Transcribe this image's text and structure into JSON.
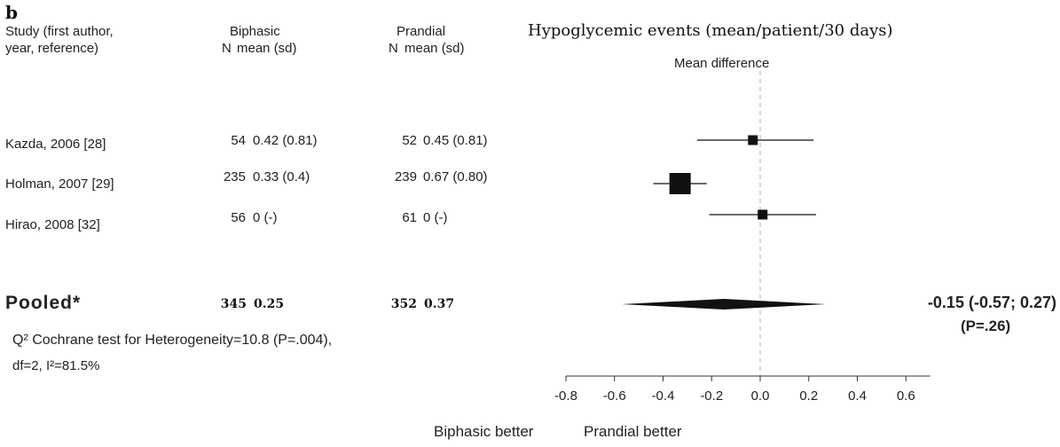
{
  "panel_label": "b",
  "title": "Hypoglycemic events (mean/patient/30 days)",
  "headers": {
    "study": [
      "Study (first author,",
      "year, reference)"
    ],
    "biphasic": "Biphasic",
    "prandial": "Prandial",
    "n": "N",
    "mean_sd": "mean (sd)",
    "mean_difference": "Mean difference"
  },
  "studies": [
    {
      "label": "Kazda, 2006 [28]",
      "bi_n": "54",
      "bi_mean": "0.42 (0.81)",
      "pr_n": "52",
      "pr_mean": "0.45 (0.81)"
    },
    {
      "label": "Holman, 2007 [29]",
      "bi_n": "235",
      "bi_mean": "0.33 (0.4)",
      "pr_n": "239",
      "pr_mean": "0.67 (0.80)"
    },
    {
      "label": "Hirao, 2008 [32]",
      "bi_n": "56",
      "bi_mean": "0 (-)",
      "pr_n": "61",
      "pr_mean": "0 (-)"
    }
  ],
  "pooled": {
    "label": "Pooled*",
    "bi_n": "345",
    "bi_mean": "0.25",
    "pr_n": "352",
    "pr_mean": "0.37",
    "estimate_text": "-0.15 (-0.57; 0.27)",
    "p_text": "(P=.26)"
  },
  "heterogeneity": [
    "Q² Cochrane test for Heterogeneity=10.8 (P=.004),",
    "df=2, I²=81.5%"
  ],
  "axis_labels": {
    "left": "Biphasic better",
    "right": "Prandial better"
  },
  "chart_data": {
    "type": "scatter",
    "subtype": "forest",
    "title": "Hypoglycemic events (mean/patient/30 days)",
    "xlabel": "",
    "ylabel": "",
    "xlim": [
      -0.8,
      0.7
    ],
    "xticks": [
      -0.8,
      -0.6,
      -0.4,
      -0.2,
      0.0,
      0.2,
      0.4,
      0.6
    ],
    "xtick_labels": [
      "-0.8",
      "-0.6",
      "-0.4",
      "-0.2",
      "0.0",
      "0.2",
      "0.4",
      "0.6"
    ],
    "reference_line": 0,
    "studies": [
      {
        "label": "Kazda, 2006 [28]",
        "estimate": -0.03,
        "lower": -0.26,
        "upper": 0.22,
        "weight": 1
      },
      {
        "label": "Holman, 2007 [29]",
        "estimate": -0.33,
        "lower": -0.44,
        "upper": -0.22,
        "weight": 2
      },
      {
        "label": "Hirao, 2008 [32]",
        "estimate": 0.01,
        "lower": -0.21,
        "upper": 0.23,
        "weight": 1
      }
    ],
    "pooled": {
      "label": "Pooled*",
      "estimate": -0.15,
      "lower": -0.57,
      "upper": 0.27
    }
  }
}
